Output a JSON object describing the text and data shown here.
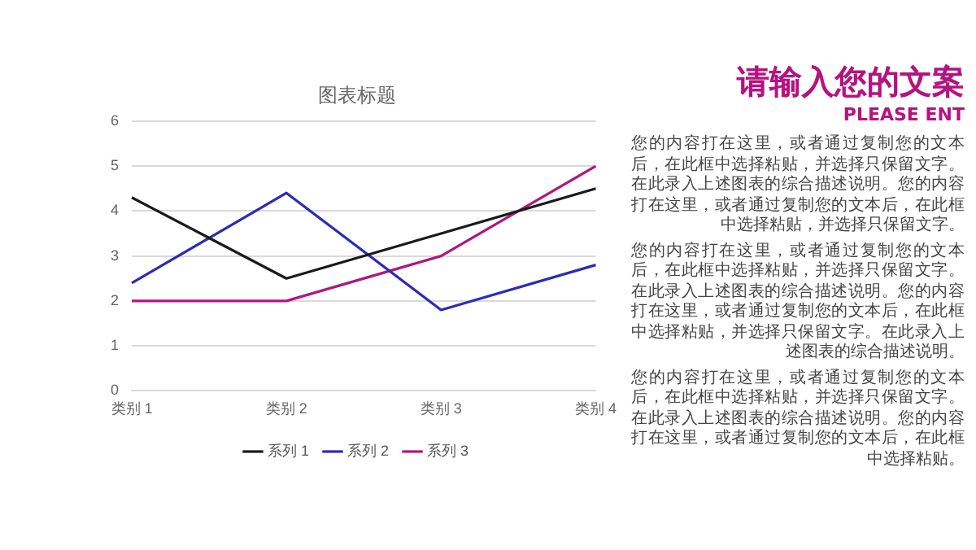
{
  "chart_data": [
    {
      "type": "line",
      "title": "图表标题",
      "categories": [
        "类别 1",
        "类别 2",
        "类别 3",
        "类别 4"
      ],
      "series": [
        {
          "name": "系列 1",
          "color": "#1a1a1a",
          "values": [
            4.3,
            2.5,
            3.5,
            4.5
          ]
        },
        {
          "name": "系列 2",
          "color": "#2b2bb8",
          "values": [
            2.4,
            4.4,
            1.8,
            2.8
          ]
        },
        {
          "name": "系列 3",
          "color": "#b0177f",
          "values": [
            2,
            2,
            3,
            5
          ]
        }
      ],
      "ylim": [
        0,
        6
      ],
      "yticks": [
        0,
        1,
        2,
        3,
        4,
        5,
        6
      ],
      "grid": "y",
      "legend": "bottom",
      "marker": "none"
    },
    {
      "type": "other",
      "title": "请输入您的文案",
      "subtitle": "PLEASE ENT",
      "annotations": [
        "您的内容打在这里，或者通过复制您的文本后，在此框中选择粘贴，并选择只保留文字。在此录入上述图表的综合描述说明。您的内容打在这里，或者通过复制您的文本后，在此框中选择粘贴，并选择只保留文字。",
        "您的内容打在这里，或者通过复制您的文本后，在此框中选择粘贴，并选择只保留文字。在此录入上述图表的综合描述说明。您的内容打在这里，或者通过复制您的文本后，在此框中选择粘贴，并选择只保留文字。在此录入上述图表的综合描述说明。",
        "您的内容打在这里，或者通过复制您的文本后，在此框中选择粘贴，并选择只保留文字。在此录入上述图表的综合描述说明。您的内容打在这里，或者通过复制您的文本后，在此框中选择粘贴。"
      ]
    }
  ]
}
